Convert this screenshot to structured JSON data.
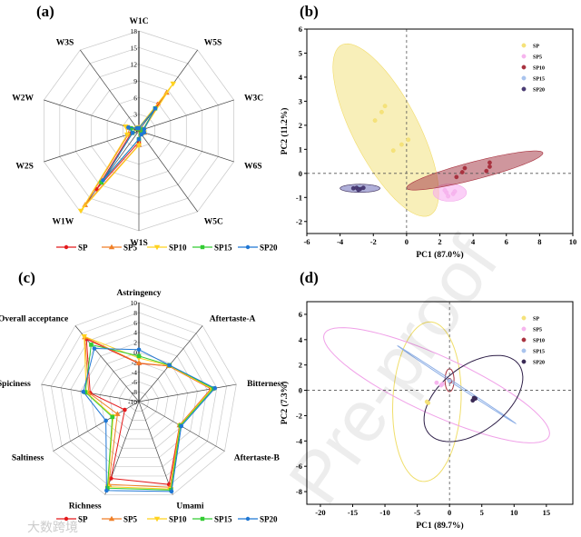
{
  "panels": {
    "a": "(a)",
    "b": "(b)",
    "c": "(c)",
    "d": "(d)"
  },
  "watermark": "Pre-proof",
  "corner_logo": "大数跨境",
  "chart_data": [
    {
      "id": "a",
      "type": "radar",
      "axes": [
        "W1C",
        "W5S",
        "W3C",
        "W6S",
        "W5C",
        "W1S",
        "W1W",
        "W2S",
        "W2W",
        "W3S"
      ],
      "range": [
        0,
        18
      ],
      "ticks": [
        0,
        3,
        6,
        9,
        12,
        15,
        18
      ],
      "series": [
        {
          "name": "SP",
          "color": "#e41a1c",
          "marker": "circle",
          "values": [
            0.5,
            6,
            0.8,
            1,
            0.6,
            2,
            13,
            1.5,
            1.5,
            0.5
          ]
        },
        {
          "name": "SP5",
          "color": "#f07f27",
          "marker": "triangle",
          "values": [
            0.6,
            8.5,
            0.8,
            1,
            0.6,
            2.5,
            16.5,
            2,
            1.8,
            0.5
          ]
        },
        {
          "name": "SP10",
          "color": "#ffd21f",
          "marker": "triangle-down",
          "values": [
            0.6,
            10.5,
            0.9,
            1,
            0.6,
            2.6,
            17.8,
            2.2,
            2.5,
            0.6
          ]
        },
        {
          "name": "SP15",
          "color": "#33cc33",
          "marker": "square",
          "values": [
            0.5,
            5,
            0.8,
            0.9,
            0.6,
            1.5,
            11.5,
            1.2,
            1.5,
            0.5
          ]
        },
        {
          "name": "SP20",
          "color": "#1f77d4",
          "marker": "circle",
          "values": [
            0.5,
            5,
            1,
            1,
            0.8,
            1.5,
            11,
            1.2,
            2,
            0.6
          ]
        }
      ]
    },
    {
      "id": "b",
      "type": "scatter",
      "xlabel": "PC1 (87.0%)",
      "ylabel": "PC2 (11.2%)",
      "xlim": [
        -6,
        10
      ],
      "ylim": [
        -2.5,
        6
      ],
      "xticks": [
        -6,
        -4,
        -2,
        0,
        2,
        4,
        6,
        8,
        10
      ],
      "yticks": [
        -2,
        -1,
        0,
        1,
        2,
        3,
        4,
        5,
        6
      ],
      "series": [
        {
          "name": "SP",
          "color": "#f2dc6a",
          "fill": "#f5e27a",
          "points": [
            [
              -1.9,
              2.2
            ],
            [
              -1.5,
              2.55
            ],
            [
              -1.3,
              2.8
            ],
            [
              -0.8,
              0.95
            ],
            [
              -0.3,
              1.2
            ],
            [
              0.1,
              1.4
            ]
          ],
          "ellipse": {
            "c": [
              -1.25,
              1.8
            ],
            "u": [
              2.75,
              -3.5
            ],
            "v": [
              1.6,
              0.8
            ],
            "fill": "#f3e17f",
            "opacity": 0.55
          }
        },
        {
          "name": "SP5",
          "color": "#f2a8ea",
          "fill": "#f7b6ef",
          "points": [
            [
              2.4,
              -0.8
            ],
            [
              2.5,
              -0.95
            ],
            [
              2.8,
              -0.85
            ],
            [
              2.9,
              -0.75
            ],
            [
              2.3,
              -0.7
            ]
          ],
          "ellipse": {
            "c": [
              2.6,
              -0.8
            ],
            "u": [
              1.0,
              0
            ],
            "v": [
              0,
              0.36
            ],
            "fill": "#f7a8f0",
            "opacity": 0.55
          }
        },
        {
          "name": "SP10",
          "color": "#a8323f",
          "fill": "#a8323f",
          "points": [
            [
              3.0,
              -0.15
            ],
            [
              3.35,
              0.05
            ],
            [
              3.5,
              0.22
            ],
            [
              4.8,
              0.1
            ],
            [
              5.0,
              0.28
            ],
            [
              5.0,
              0.45
            ]
          ],
          "ellipse": {
            "c": [
              4.1,
              0.12
            ],
            "u": [
              4.1,
              0.72
            ],
            "v": [
              0,
              0.38
            ],
            "fill": "#a8404c",
            "opacity": 0.55
          }
        },
        {
          "name": "SP15",
          "color": "#9ab8e8",
          "fill": "#a9c4ee",
          "points": [
            [
              -2.9,
              -0.6
            ]
          ],
          "ellipse": null
        },
        {
          "name": "SP20",
          "color": "#3a2a55",
          "fill": "#4a3c78",
          "points": [
            [
              -3.2,
              -0.62
            ],
            [
              -3.0,
              -0.6
            ],
            [
              -2.8,
              -0.65
            ],
            [
              -2.6,
              -0.6
            ],
            [
              -2.9,
              -0.68
            ]
          ],
          "ellipse": {
            "c": [
              -2.8,
              -0.62
            ],
            "u": [
              1.2,
              0
            ],
            "v": [
              0,
              0.17
            ],
            "fill": "#7a7ac0",
            "opacity": 0.6
          }
        }
      ]
    },
    {
      "id": "c",
      "type": "radar",
      "axes": [
        "Astringency",
        "Aftertaste-A",
        "Bitterness",
        "Aftertaste-B",
        "Umami",
        "Richness",
        "Saltiness",
        "Spiciness",
        "Overall acceptance"
      ],
      "range": [
        -10,
        10
      ],
      "ticks": [
        -10,
        -8,
        -6,
        -4,
        -2,
        0,
        2,
        4,
        6,
        8,
        10
      ],
      "series": [
        {
          "name": "SP",
          "color": "#e41a1c",
          "marker": "circle",
          "values": [
            -2.3,
            -0.6,
            4.8,
            -0.5,
            7.8,
            6.5,
            -6.7,
            0,
            6.5
          ]
        },
        {
          "name": "SP5",
          "color": "#f07f27",
          "marker": "triangle",
          "values": [
            -2.2,
            -0.6,
            4.9,
            -0.5,
            8.4,
            7.8,
            -5,
            0.3,
            7
          ]
        },
        {
          "name": "SP10",
          "color": "#ffd21f",
          "marker": "triangle-down",
          "values": [
            -1.2,
            -0.5,
            5.0,
            -0.4,
            8.8,
            8.3,
            -4,
            0.8,
            7.2
          ]
        },
        {
          "name": "SP15",
          "color": "#33cc33",
          "marker": "square",
          "values": [
            -0.8,
            -0.4,
            5.3,
            -0.3,
            9.0,
            8.6,
            -3.8,
            1,
            5
          ]
        },
        {
          "name": "SP20",
          "color": "#1f77d4",
          "marker": "circle",
          "values": [
            0.5,
            -0.4,
            5.6,
            -0.1,
            9.3,
            9.1,
            -2.3,
            1.4,
            4
          ]
        }
      ]
    },
    {
      "id": "d",
      "type": "scatter",
      "xlabel": "PC1 (89.7%)",
      "ylabel": "PC2 (7.3%)",
      "xlim": [
        -22.1,
        19.1
      ],
      "ylim": [
        -9,
        7
      ],
      "xticks": [
        -20,
        -15,
        -10,
        -5,
        0,
        5,
        10,
        15
      ],
      "yticks": [
        -8,
        -6,
        -4,
        -2,
        0,
        2,
        4,
        6
      ],
      "series": [
        {
          "name": "SP",
          "color": "#f2dc6a",
          "fill": "#f5e27a",
          "points": [
            [
              -3.3,
              -1.0
            ],
            [
              -3.5,
              -0.9
            ]
          ],
          "ellipse": {
            "c": [
              -3.5,
              -0.9
            ],
            "u": [
              5.3,
              0.2
            ],
            "v": [
              0.3,
              6.3
            ],
            "stroke": "#f0de6a"
          }
        },
        {
          "name": "SP5",
          "color": "#f2a8ea",
          "fill": "#f7b6ef",
          "points": [
            [
              -2.0,
              0.6
            ],
            [
              -1.3,
              0.4
            ],
            [
              -1.1,
              0.5
            ]
          ],
          "ellipse": {
            "c": [
              -2.0,
              0.4
            ],
            "u": [
              17.5,
              -3.8
            ],
            "v": [
              0,
              2.5
            ],
            "stroke": "#f0a0e8"
          }
        },
        {
          "name": "SP10",
          "color": "#a8323f",
          "fill": "#a8323f",
          "points": [
            [
              0.0,
              0.8
            ],
            [
              0.1,
              0.7
            ]
          ],
          "ellipse": {
            "c": [
              0.0,
              0.8
            ],
            "u": [
              0.7,
              0
            ],
            "v": [
              0,
              0.9
            ],
            "stroke": "#a8323f"
          }
        },
        {
          "name": "SP15",
          "color": "#9ab8e8",
          "fill": "#a9c4ee",
          "points": [
            [
              0.0,
              0.75
            ]
          ],
          "ellipse": {
            "c": [
              1.1,
              0.45
            ],
            "u": [
              9.1,
              -3.05
            ],
            "v": [
              0,
              0.08
            ],
            "stroke": "#8fb0e6"
          }
        },
        {
          "name": "SP20",
          "color": "#3a2a55",
          "fill": "#3a2a55",
          "points": [
            [
              3.6,
              -0.8
            ],
            [
              3.8,
              -0.6
            ],
            [
              4.0,
              -0.65
            ]
          ],
          "ellipse": {
            "c": [
              3.7,
              -0.65
            ],
            "u": [
              7.5,
              2.2
            ],
            "v": [
              -1.5,
              2.6
            ],
            "stroke": "#2e1f48"
          }
        }
      ]
    }
  ]
}
